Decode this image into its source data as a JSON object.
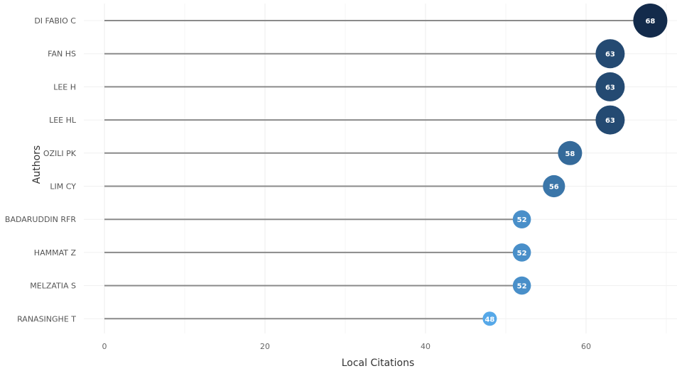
{
  "chart_data": {
    "type": "scatter",
    "variant": "lollipop",
    "xlabel": "Local Citations",
    "ylabel": "Authors",
    "xlim": [
      0,
      71
    ],
    "xticks": [
      0,
      20,
      40,
      60
    ],
    "grid": true,
    "categories": [
      "DI FABIO C",
      "FAN HS",
      "LEE H",
      "LEE HL",
      "OZILI PK",
      "LIM CY",
      "BADARUDDIN RFR",
      "HAMMAT Z",
      "MELZATIA S",
      "RANASINGHE T"
    ],
    "values": [
      68,
      63,
      63,
      63,
      58,
      56,
      52,
      52,
      52,
      48
    ],
    "color_scale": {
      "low": "#56a8e8",
      "high": "#132b4b"
    }
  }
}
